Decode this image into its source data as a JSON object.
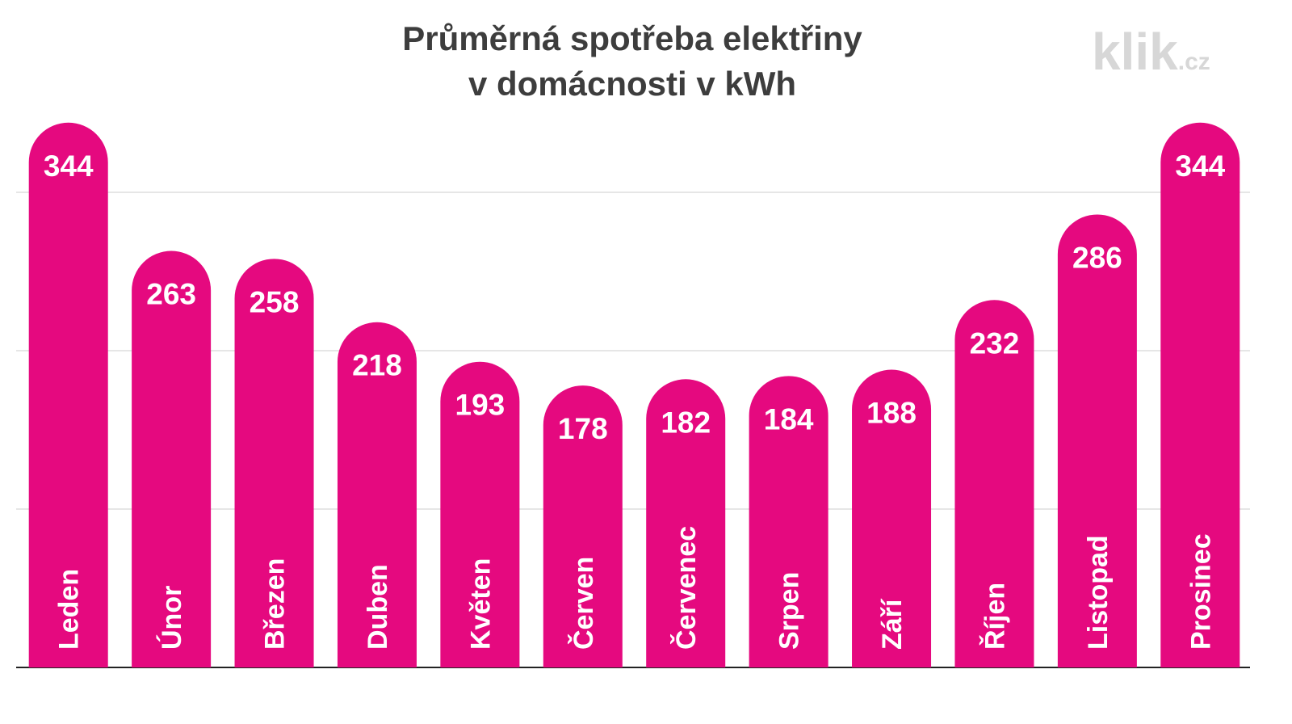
{
  "chart_data": {
    "type": "bar",
    "title": [
      "Průměrná spotřeba elektřiny",
      "v domácnosti v kWh"
    ],
    "watermark": [
      "klik",
      ".cz"
    ],
    "categories": [
      "Leden",
      "Únor",
      "Březen",
      "Duben",
      "Květen",
      "Červen",
      "Červenec",
      "Srpen",
      "Září",
      "Říjen",
      "Listopad",
      "Prosinec"
    ],
    "values": [
      344,
      263,
      258,
      218,
      193,
      178,
      182,
      184,
      188,
      232,
      286,
      344
    ],
    "color": "#e5097f",
    "ylim": [
      0,
      350
    ],
    "yticks": [
      0,
      100,
      200,
      300
    ],
    "grid": true
  }
}
